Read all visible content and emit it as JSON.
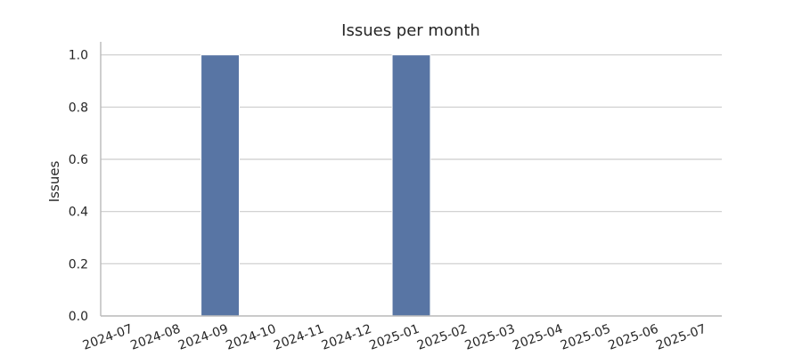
{
  "chart_data": {
    "type": "bar",
    "title": "Issues per month",
    "xlabel": "",
    "ylabel": "Issues",
    "categories": [
      "2024-07",
      "2024-08",
      "2024-09",
      "2024-10",
      "2024-11",
      "2024-12",
      "2025-01",
      "2025-02",
      "2025-03",
      "2025-04",
      "2025-05",
      "2025-06",
      "2025-07"
    ],
    "values": [
      0,
      0,
      1,
      0,
      0,
      0,
      1,
      0,
      0,
      0,
      0,
      0,
      0
    ],
    "ylim": [
      0,
      1.05
    ],
    "yticks": [
      0.0,
      0.2,
      0.4,
      0.6,
      0.8,
      1.0
    ],
    "ytick_labels": [
      "0.0",
      "0.2",
      "0.4",
      "0.6",
      "0.8",
      "1.0"
    ],
    "grid": "horizontal",
    "legend": "none",
    "bar_color": "#5875a4"
  }
}
